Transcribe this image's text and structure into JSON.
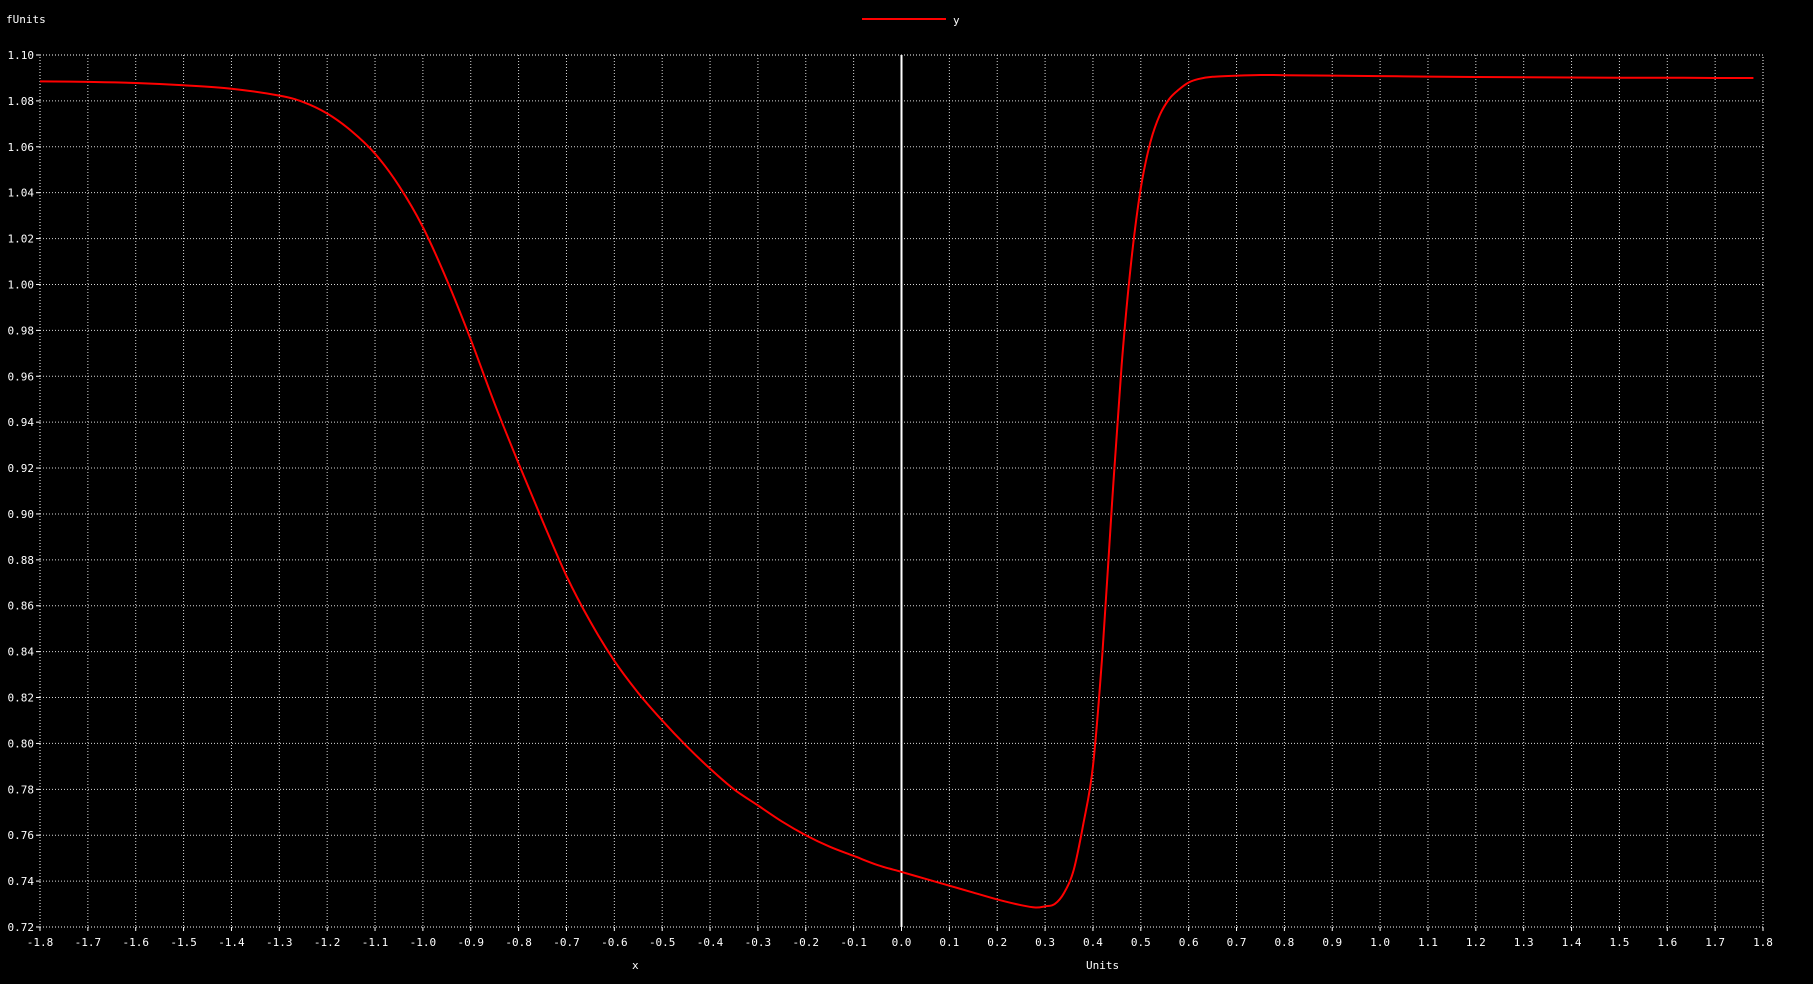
{
  "chart_data": {
    "type": "line",
    "title": "",
    "ylabel": "fUnits",
    "xlabel_left": "x",
    "xlabel": "Units",
    "xlim": [
      -1.8,
      1.8
    ],
    "ylim": [
      0.72,
      1.1
    ],
    "grid": true,
    "legend_position": "top-center",
    "background": "#000000",
    "foreground": "#ffffff",
    "zero_line_color": "#ffffff",
    "xticks": [
      "-1.8",
      "-1.7",
      "-1.6",
      "-1.5",
      "-1.4",
      "-1.3",
      "-1.2",
      "-1.1",
      "-1.0",
      "-0.9",
      "-0.8",
      "-0.7",
      "-0.6",
      "-0.5",
      "-0.4",
      "-0.3",
      "-0.2",
      "-0.1",
      "0.0",
      "0.1",
      "0.2",
      "0.3",
      "0.4",
      "0.5",
      "0.6",
      "0.7",
      "0.8",
      "0.9",
      "1.0",
      "1.1",
      "1.2",
      "1.3",
      "1.4",
      "1.5",
      "1.6",
      "1.7",
      "1.8"
    ],
    "yticks": [
      "1.10",
      "1.08",
      "1.06",
      "1.04",
      "1.02",
      "1.00",
      "0.98",
      "0.96",
      "0.94",
      "0.92",
      "0.90",
      "0.88",
      "0.86",
      "0.84",
      "0.82",
      "0.80",
      "0.78",
      "0.76",
      "0.74",
      "0.72"
    ],
    "series": [
      {
        "name": "y",
        "color": "#ff0000",
        "x": [
          -1.8,
          -1.7,
          -1.6,
          -1.5,
          -1.4,
          -1.3,
          -1.25,
          -1.2,
          -1.15,
          -1.1,
          -1.05,
          -1.0,
          -0.95,
          -0.9,
          -0.85,
          -0.8,
          -0.75,
          -0.7,
          -0.65,
          -0.6,
          -0.55,
          -0.5,
          -0.45,
          -0.4,
          -0.35,
          -0.3,
          -0.25,
          -0.2,
          -0.15,
          -0.1,
          -0.05,
          0.0,
          0.05,
          0.1,
          0.15,
          0.2,
          0.25,
          0.28,
          0.3,
          0.32,
          0.34,
          0.36,
          0.38,
          0.4,
          0.42,
          0.44,
          0.46,
          0.48,
          0.5,
          0.52,
          0.54,
          0.56,
          0.58,
          0.6,
          0.62,
          0.65,
          0.7,
          0.75,
          0.8,
          0.9,
          1.0,
          1.1,
          1.2,
          1.3,
          1.4,
          1.5,
          1.6,
          1.7,
          1.78
        ],
        "y": [
          1.0885,
          1.0883,
          1.0878,
          1.0868,
          1.0853,
          1.0823,
          1.0795,
          1.0745,
          1.067,
          1.057,
          1.043,
          1.025,
          1.002,
          0.976,
          0.948,
          0.922,
          0.897,
          0.873,
          0.853,
          0.836,
          0.822,
          0.81,
          0.799,
          0.789,
          0.78,
          0.773,
          0.766,
          0.76,
          0.755,
          0.751,
          0.747,
          0.744,
          0.741,
          0.738,
          0.735,
          0.732,
          0.7295,
          0.7285,
          0.729,
          0.73,
          0.735,
          0.745,
          0.765,
          0.79,
          0.84,
          0.905,
          0.965,
          1.01,
          1.042,
          1.062,
          1.074,
          1.081,
          1.085,
          1.088,
          1.0895,
          1.0905,
          1.091,
          1.0913,
          1.0912,
          1.091,
          1.0908,
          1.0906,
          1.0904,
          1.0903,
          1.0902,
          1.0901,
          1.0901,
          1.09,
          1.09
        ]
      }
    ]
  }
}
